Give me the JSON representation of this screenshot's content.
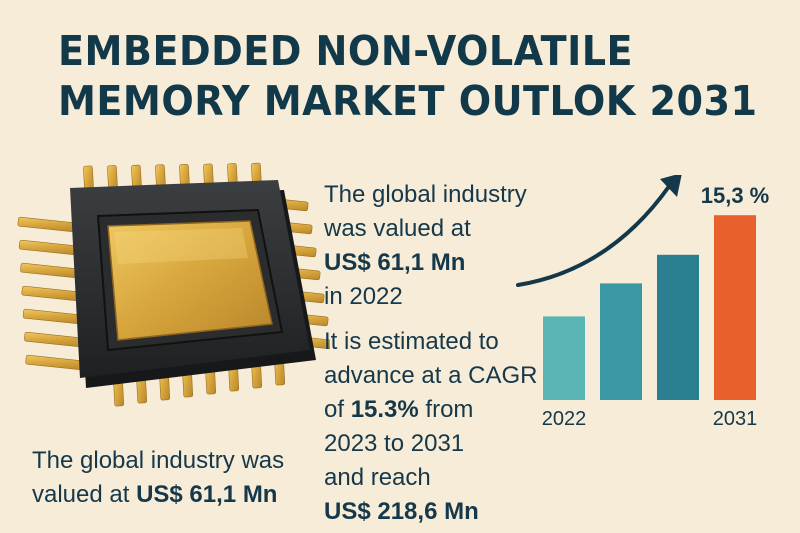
{
  "title": {
    "line1": "EMBEDDED NON-VOLATILE",
    "line2": "MEMORY MARKET OUTLOK 2031"
  },
  "chip_icon": "microchip-icon",
  "caption": {
    "line1": "The global industry was",
    "line2_prefix": "valued at ",
    "line2_value": "US$ 61,1 Mn"
  },
  "middle": {
    "line1": "The global industry",
    "line2": "was valued at",
    "value": "US$ 61,1 Mn",
    "line4": "in 2022",
    "line5": "It is estimated to",
    "line6": "advance at a CAGR",
    "line7_prefix": "of ",
    "cagr": "15.3%",
    "line7_suffix": " from",
    "line8": "2023 to 2031",
    "line9": "and reach",
    "end_value": "US$ 218,6 Mn"
  },
  "colors": {
    "title": "#12394a",
    "bar_teal_light": "#5ab5b5",
    "bar_teal": "#3b97a3",
    "bar_teal_dark": "#2a7f90",
    "bar_orange": "#e8612c",
    "background": "#f7ecd8"
  },
  "chart_data": {
    "type": "bar",
    "categories": [
      "2022",
      "",
      "",
      "2031"
    ],
    "values": [
      0.38,
      0.53,
      0.66,
      0.84
    ],
    "bar_colors": [
      "#5ab5b5",
      "#3b97a3",
      "#2a7f90",
      "#e8612c"
    ],
    "annotation": "15,3 %",
    "trend_arrow": true,
    "grid": false
  }
}
